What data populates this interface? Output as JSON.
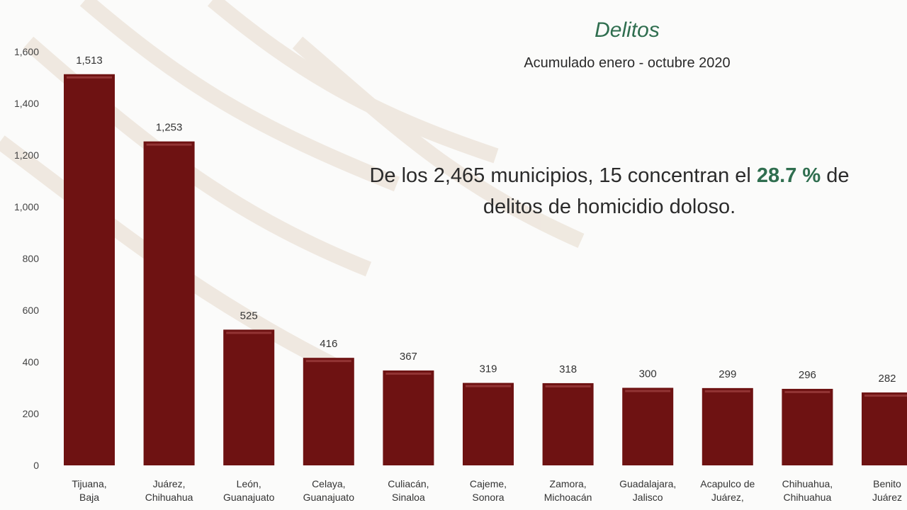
{
  "chart_data": {
    "type": "bar",
    "title": "Delitos",
    "subtitle": "Acumulado enero - octubre 2020",
    "categories": [
      [
        "Tijuana,",
        "Baja"
      ],
      [
        "Juárez,",
        "Chihuahua"
      ],
      [
        "León,",
        "Guanajuato"
      ],
      [
        "Celaya,",
        "Guanajuato"
      ],
      [
        "Culiacán,",
        "Sinaloa"
      ],
      [
        "Cajeme,",
        "Sonora"
      ],
      [
        "Zamora,",
        "Michoacán"
      ],
      [
        "Guadalajara,",
        "Jalisco"
      ],
      [
        "Acapulco de",
        "Juárez,"
      ],
      [
        "Chihuahua,",
        "Chihuahua"
      ],
      [
        "Benito",
        "Juárez"
      ]
    ],
    "values": [
      1513,
      1253,
      525,
      416,
      367,
      319,
      318,
      300,
      299,
      296,
      282
    ],
    "value_labels": [
      "1,513",
      "1,253",
      "525",
      "416",
      "367",
      "319",
      "318",
      "300",
      "299",
      "296",
      "282"
    ],
    "ylim": [
      0,
      1600
    ],
    "yticks": [
      0,
      200,
      400,
      600,
      800,
      1000,
      1200,
      1400,
      1600
    ],
    "ytick_labels": [
      "0",
      "200",
      "400",
      "600",
      "800",
      "1,000",
      "1,200",
      "1,400",
      "1,600"
    ],
    "bar_color": "#6e1212",
    "grid": false,
    "legend": "none"
  },
  "annotation": {
    "part1": "De los 2,465 municipios, 15 concentran el ",
    "highlight": "28.7 %",
    "part2": " de",
    "line2": "delitos de homicidio doloso."
  },
  "colors": {
    "title": "#2f6e4f",
    "highlight": "#2f6e4f",
    "background": "#fbfbfa"
  }
}
